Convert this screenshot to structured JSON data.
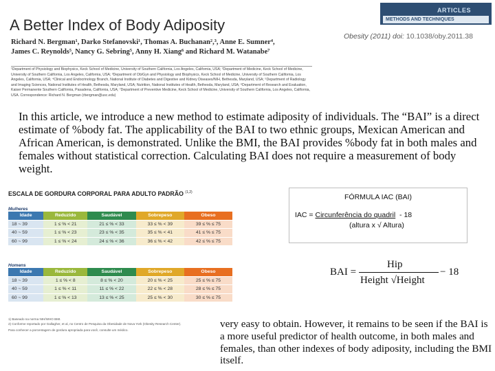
{
  "header": {
    "title": "A Better Index of Body Adiposity",
    "authors_line1": "Richard N. Bergman¹, Darko Stefanovski¹, Thomas A. Buchanan²,³, Anne E. Sumner⁴,",
    "authors_line2": "James C. Reynolds⁵, Nancy G. Sebring⁵, Anny H. Xiang⁶ and Richard M. Watanabe⁷",
    "affiliations": "¹Department of Physiology and Biophysics, Keck School of Medicine, University of Southern California, Los Angeles, California, USA; ²Department of Medicine, Keck School of Medicine, University of Southern California, Los Angeles, California, USA; ³Department of Ob/Gyn and Physiology and Biophysics, Keck School of Medicine, University of Southern California, Los Angeles, California, USA; ⁴Clinical and Endocrinology Branch, National Institute of Diabetes and Digestive and Kidney Diseases/NIH, Bethesda, Maryland, USA; ⁵Department of Radiology and Imaging Sciences, National Institutes of Health, Bethesda, Maryland, USA; Nutrition, National Institutes of Health, Bethesda, Maryland, USA; ⁶Department of Research and Evaluation, Kaiser Permanente Southern California, Pasadena, California, USA; ⁷Department of Preventive Medicine, Keck School of Medicine, University of Southern California, Los Angeles, California, USA. Correspondence: Richard N. Bergman (rbergman@usc.edu)",
    "badge_top": "ARTICLES",
    "badge_bottom": "METHODS AND TECHNIQUES",
    "citation_journal": "Obesity (2011) doi:",
    "citation_doi": "10.1038/oby.2011.38"
  },
  "intro_text": "In this article, we introduce a new method to estimate adiposity of individuals. The “BAI” is a direct estimate of %body fat. The applicability of the BAI to two ethnic groups, Mexican American and African American, is demonstrated. Unlike the BMI, the BAI provides %body fat in both males and females without statistical correction. Calculating BAI does not require a measurement of body weight.",
  "scale_table": {
    "title": "ESCALA DE GORDURA CORPORAL PARA ADULTO PADRÃO",
    "title_ref": "(1,2)",
    "headers": [
      "Idade",
      "Reduzido",
      "Saudável",
      "Sobrepeso",
      "Obeso"
    ],
    "groups": [
      {
        "name": "Mulheres",
        "rows": [
          [
            "18 ~ 39",
            "1 ≤ % < 21",
            "21 ≤ % < 33",
            "33 ≤ % < 39",
            "39 ≤ % ≤ 75"
          ],
          [
            "40 ~ 59",
            "1 ≤ % < 23",
            "23 ≤ % < 35",
            "35 ≤ % < 41",
            "41 ≤ % ≤ 75"
          ],
          [
            "60 ~ 99",
            "1 ≤ % < 24",
            "24 ≤ % < 36",
            "36 ≤ % < 42",
            "42 ≤ % ≤ 75"
          ]
        ]
      },
      {
        "name": "Homens",
        "rows": [
          [
            "18 ~ 39",
            "1 ≤ % < 8",
            "8 ≤ % < 20",
            "20 ≤ % < 25",
            "25 ≤ % ≤ 75"
          ],
          [
            "40 ~ 59",
            "1 ≤ % < 11",
            "11 ≤ % < 22",
            "22 ≤ % < 28",
            "28 ≤ % ≤ 75"
          ],
          [
            "60 ~ 99",
            "1 ≤ % < 13",
            "13 ≤ % < 25",
            "25 ≤ % < 30",
            "30 ≤ % ≤ 75"
          ]
        ]
      }
    ],
    "footnote1": "1) Baseado na norma NIH/WHO BMI.",
    "footnote2": "2) Conforme reportado por Gallagher, et al, no Centro de Pesquisa da Obesidade de Nova York (Obesity Research Center).",
    "footnote3": "Para conhecer a porcentagem de gordura apropriada para você, consulte um médico."
  },
  "formula_box": {
    "title": "FÓRMULA IAC (BAI)",
    "line1_prefix": "IAC = ",
    "line1_underlined": "Circunferência do quadril",
    "line1_suffix": "  - 18",
    "line2": "(altura x √ Altura)"
  },
  "equation": {
    "lhs": "BAI =",
    "numerator": "Hip",
    "denominator": "Height √Height",
    "tail": "− 18"
  },
  "conclusion_text": "very easy to obtain. However, it remains to be seen if the BAI is a more useful predictor of health outcome, in both males and females, than other indexes of body adiposity, including the BMI itself."
}
